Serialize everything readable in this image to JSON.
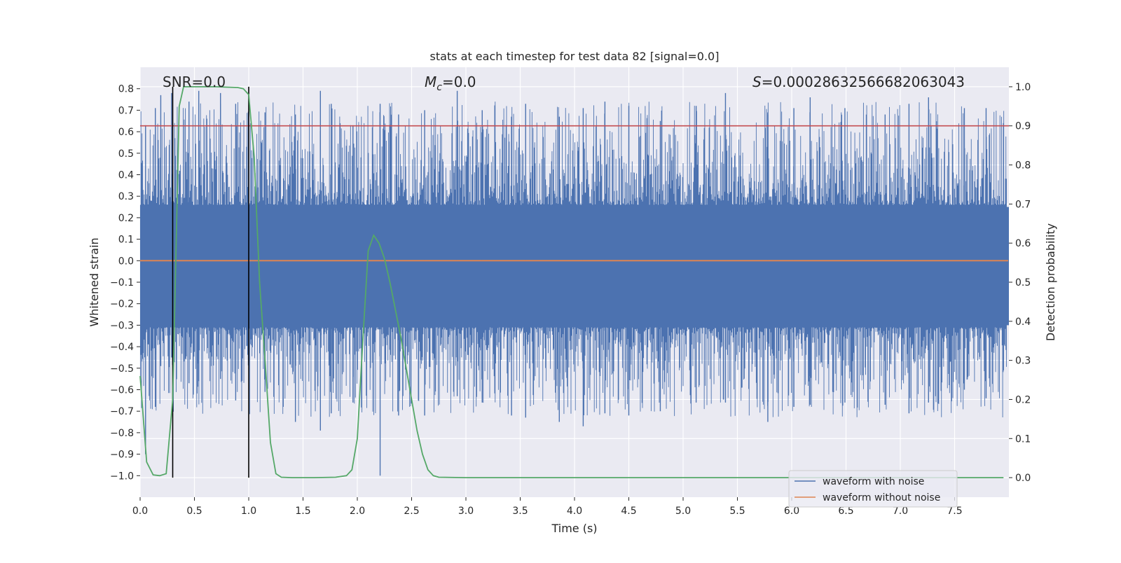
{
  "chart_data": {
    "type": "line",
    "title": "stats at each timestep for test data 82 [signal=0.0]",
    "xlabel": "Time (s)",
    "ylabel_left": "Whitened strain",
    "ylabel_right": "Detection probability",
    "xlim": [
      0.0,
      8.0
    ],
    "ylim_left": [
      -1.1,
      0.9
    ],
    "ylim_right": [
      -0.05,
      1.05
    ],
    "x_ticks": [
      0.0,
      0.5,
      1.0,
      1.5,
      2.0,
      2.5,
      3.0,
      3.5,
      4.0,
      4.5,
      5.0,
      5.5,
      6.0,
      6.5,
      7.0,
      7.5
    ],
    "x_tick_labels": [
      "0.0",
      "0.5",
      "1.0",
      "1.5",
      "2.0",
      "2.5",
      "3.0",
      "3.5",
      "4.0",
      "4.5",
      "5.0",
      "5.5",
      "6.0",
      "6.5",
      "7.0",
      "7.5"
    ],
    "y_left_ticks": [
      0.8,
      0.7,
      0.6,
      0.5,
      0.4,
      0.3,
      0.2,
      0.1,
      0.0,
      -0.1,
      -0.2,
      -0.3,
      -0.4,
      -0.5,
      -0.6,
      -0.7,
      -0.8,
      -0.9,
      -1.0
    ],
    "y_left_tick_labels": [
      "0.8",
      "0.7",
      "0.6",
      "0.5",
      "0.4",
      "0.3",
      "0.2",
      "0.1",
      "0.0",
      "−0.1",
      "−0.2",
      "−0.3",
      "−0.4",
      "−0.5",
      "−0.6",
      "−0.7",
      "−0.8",
      "−0.9",
      "−1.0"
    ],
    "y_right_ticks": [
      1.0,
      0.9,
      0.8,
      0.7,
      0.6,
      0.5,
      0.4,
      0.3,
      0.2,
      0.1,
      0.0
    ],
    "y_right_tick_labels": [
      "1.0",
      "0.9",
      "0.8",
      "0.7",
      "0.6",
      "0.5",
      "0.4",
      "0.3",
      "0.2",
      "0.1",
      "0.0"
    ],
    "grid": true,
    "annotations": {
      "snr": "SNR=0.0",
      "mc_symbol": "M",
      "mc_sub": "c",
      "mc_value": "=0.0",
      "s_symbol": "S",
      "s_value": "=0.00028632566682063043"
    },
    "threshold_right": 0.9,
    "vertical_lines_x": [
      0.3,
      1.0
    ],
    "series": [
      {
        "name": "waveform with noise",
        "color": "#4c72b0",
        "axis": "left",
        "noise_band": [
          -0.3,
          0.25
        ],
        "peaks_x": [
          0.05,
          0.14,
          0.19,
          0.29,
          0.45,
          0.54,
          0.74,
          0.88,
          1.15,
          1.43,
          1.66,
          1.76,
          1.96,
          2.21,
          2.38,
          2.62,
          2.92,
          3.15,
          3.42,
          3.55,
          3.86,
          4.08,
          4.28,
          4.5,
          4.79,
          5.12,
          5.39,
          5.78,
          6.02,
          6.17,
          6.49,
          6.86,
          7.08,
          7.26,
          7.59,
          7.79,
          7.95
        ],
        "peaks_high": [
          0.63,
          0.71,
          0.77,
          0.78,
          0.74,
          0.79,
          0.78,
          0.73,
          0.69,
          0.68,
          0.79,
          0.73,
          0.63,
          0.73,
          0.68,
          0.7,
          0.79,
          0.7,
          0.67,
          0.73,
          0.67,
          0.71,
          0.74,
          0.72,
          0.65,
          0.72,
          0.78,
          0.68,
          0.71,
          0.76,
          0.71,
          0.68,
          0.73,
          0.76,
          0.71,
          0.71,
          0.64
        ],
        "peaks_low": [
          -0.9,
          -0.68,
          -0.49,
          -0.45,
          -0.57,
          -0.56,
          -0.55,
          -0.65,
          -0.61,
          -0.75,
          -0.79,
          -0.71,
          -0.66,
          -1.0,
          -0.72,
          -0.72,
          -0.63,
          -0.66,
          -0.72,
          -0.73,
          -0.75,
          -0.77,
          -0.71,
          -0.72,
          -0.7,
          -0.66,
          -0.66,
          -0.75,
          -0.68,
          -0.67,
          -0.66,
          -0.67,
          -0.71,
          -0.66,
          -0.6,
          -0.64,
          -0.51
        ]
      },
      {
        "name": "waveform without noise",
        "color": "#dd8452",
        "axis": "left",
        "x": [
          0.0,
          8.0
        ],
        "values": [
          0.0,
          0.0
        ]
      },
      {
        "color": "#55a868",
        "axis": "right",
        "x": [
          0.0,
          0.06,
          0.12,
          0.18,
          0.24,
          0.3,
          0.36,
          0.4,
          0.5,
          0.6,
          0.7,
          0.8,
          0.9,
          0.95,
          1.0,
          1.05,
          1.1,
          1.15,
          1.2,
          1.25,
          1.3,
          1.4,
          1.6,
          1.8,
          1.9,
          1.95,
          2.0,
          2.05,
          2.1,
          2.15,
          2.2,
          2.25,
          2.3,
          2.35,
          2.4,
          2.45,
          2.5,
          2.55,
          2.6,
          2.65,
          2.7,
          2.75,
          3.0,
          4.0,
          5.0,
          6.0,
          7.0,
          7.95
        ],
        "values": [
          0.26,
          0.04,
          0.007,
          0.005,
          0.01,
          0.2,
          0.95,
          1.0,
          1.0,
          1.0,
          1.0,
          0.999,
          0.998,
          0.995,
          0.98,
          0.82,
          0.5,
          0.3,
          0.09,
          0.01,
          0.001,
          0.0,
          0.0,
          0.001,
          0.005,
          0.02,
          0.1,
          0.35,
          0.58,
          0.62,
          0.6,
          0.56,
          0.5,
          0.43,
          0.36,
          0.28,
          0.2,
          0.12,
          0.06,
          0.02,
          0.005,
          0.001,
          0.0,
          0.0,
          0.0,
          0.0,
          0.0,
          0.0
        ]
      }
    ],
    "legend": {
      "placement": "lower-right"
    }
  }
}
